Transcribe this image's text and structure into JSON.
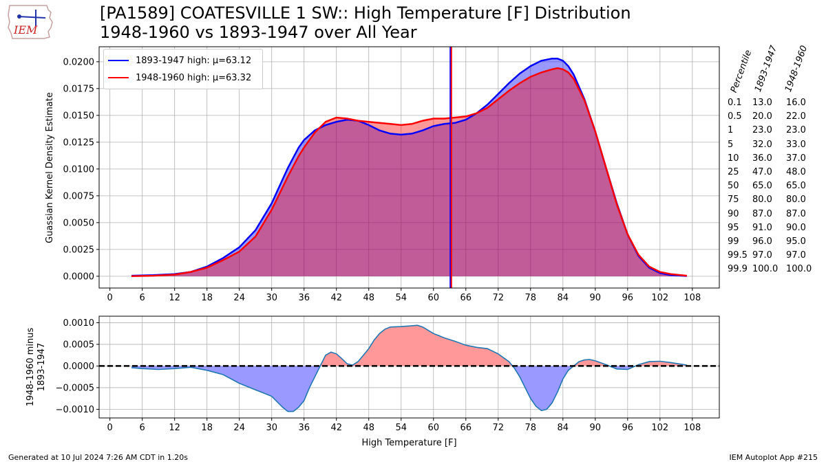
{
  "header": {
    "title_line1": "[PA1589] COATESVILLE 1 SW:: High Temperature [F] Distribution",
    "title_line2": "1948-1960 vs 1893-1947 over All Year",
    "logo_text": "IEM"
  },
  "footer": {
    "generated": "Generated at 10 Jul 2024 7:26 AM CDT in 1.20s",
    "app": "IEM Autoplot App #215"
  },
  "colors": {
    "series1": "#0000ff",
    "series2": "#ff0000",
    "fill_overlap": "#c0569a",
    "diff_pos": "#ff9999",
    "diff_neg": "#9999ff",
    "diff_line": "#1f77b4",
    "grid": "#b0b0b0"
  },
  "percentile_table": {
    "headers": [
      "Percentile",
      "1893-1947",
      "1948-1960"
    ],
    "rows": [
      [
        "0.1",
        "13.0",
        "16.0"
      ],
      [
        "0.5",
        "20.0",
        "22.0"
      ],
      [
        "1",
        "23.0",
        "23.0"
      ],
      [
        "5",
        "32.0",
        "33.0"
      ],
      [
        "10",
        "36.0",
        "37.0"
      ],
      [
        "25",
        "47.0",
        "48.0"
      ],
      [
        "50",
        "65.0",
        "65.0"
      ],
      [
        "75",
        "80.0",
        "80.0"
      ],
      [
        "90",
        "87.0",
        "87.0"
      ],
      [
        "95",
        "91.0",
        "90.0"
      ],
      [
        "99",
        "96.0",
        "95.0"
      ],
      [
        "99.5",
        "97.0",
        "97.0"
      ],
      [
        "99.9",
        "100.0",
        "100.0"
      ]
    ]
  },
  "chart_data": [
    {
      "type": "area",
      "ylabel": "Guassian Kernel Density Estimate",
      "xlim": [
        -2,
        113
      ],
      "ylim": [
        -0.0011,
        0.0214
      ],
      "xticks": [
        0,
        6,
        12,
        18,
        24,
        30,
        36,
        42,
        48,
        54,
        60,
        66,
        72,
        78,
        84,
        90,
        96,
        102,
        108
      ],
      "yticks": [
        0.0,
        0.0025,
        0.005,
        0.0075,
        0.01,
        0.0125,
        0.015,
        0.0175,
        0.02
      ],
      "ytick_labels": [
        "0.0000",
        "0.0025",
        "0.0050",
        "0.0075",
        "0.0100",
        "0.0125",
        "0.0150",
        "0.0175",
        "0.0200"
      ],
      "grid": true,
      "legend_position": "top-left",
      "legend": [
        "1893-1947 high: μ=63.12",
        "1948-1960 high: μ=63.32"
      ],
      "x": [
        4,
        8,
        12,
        15,
        18,
        21,
        24,
        27,
        30,
        33,
        35,
        36,
        38,
        40,
        42,
        44,
        46,
        48,
        50,
        52,
        54,
        56,
        58,
        60,
        62,
        64,
        66,
        68,
        70,
        72,
        74,
        76,
        78,
        80,
        82,
        83,
        84,
        85,
        86,
        88,
        90,
        92,
        94,
        96,
        98,
        100,
        102,
        104,
        107
      ],
      "series": [
        {
          "name": "1893-1947",
          "mean": 63.12,
          "values": [
            5e-05,
            0.0001,
            0.0002,
            0.0004,
            0.0009,
            0.0017,
            0.0027,
            0.0043,
            0.0068,
            0.0101,
            0.012,
            0.0127,
            0.0136,
            0.0141,
            0.0144,
            0.0146,
            0.0145,
            0.0141,
            0.0136,
            0.0133,
            0.0132,
            0.0133,
            0.0136,
            0.014,
            0.0142,
            0.0143,
            0.0146,
            0.0152,
            0.016,
            0.017,
            0.018,
            0.0189,
            0.0196,
            0.0201,
            0.0203,
            0.0203,
            0.0201,
            0.0196,
            0.0188,
            0.0165,
            0.0135,
            0.0101,
            0.0068,
            0.0039,
            0.0019,
            0.0008,
            0.0003,
            0.0001,
            2e-05
          ]
        },
        {
          "name": "1948-1960",
          "mean": 63.32,
          "values": [
            0.0,
            5e-05,
            0.00015,
            0.0004,
            0.0008,
            0.0015,
            0.0023,
            0.0037,
            0.0062,
            0.0093,
            0.0112,
            0.012,
            0.0134,
            0.0144,
            0.0148,
            0.0147,
            0.0145,
            0.0144,
            0.0143,
            0.0142,
            0.0141,
            0.0142,
            0.0145,
            0.0147,
            0.0147,
            0.0148,
            0.0149,
            0.0152,
            0.0157,
            0.0165,
            0.0173,
            0.018,
            0.0186,
            0.019,
            0.0193,
            0.0194,
            0.0193,
            0.019,
            0.0184,
            0.0164,
            0.0135,
            0.0101,
            0.0067,
            0.0039,
            0.002,
            0.0009,
            0.0004,
            0.0002,
            5e-05
          ]
        }
      ]
    },
    {
      "type": "area",
      "xlabel": "High Temperature [F]",
      "ylabel_lines": [
        "1948-1960 minus",
        "1893-1947"
      ],
      "xlim": [
        -2,
        113
      ],
      "ylim": [
        -0.0012,
        0.00115
      ],
      "xticks": [
        0,
        6,
        12,
        18,
        24,
        30,
        36,
        42,
        48,
        54,
        60,
        66,
        72,
        78,
        84,
        90,
        96,
        102,
        108
      ],
      "yticks": [
        -0.001,
        -0.0005,
        0.0,
        0.0005,
        0.001
      ],
      "ytick_labels": [
        "−0.0010",
        "−0.0005",
        "0.0000",
        "0.0005",
        "0.0010"
      ],
      "grid": true,
      "x": [
        4,
        6,
        9,
        12,
        15,
        18,
        21,
        24,
        27,
        30,
        32,
        33,
        34,
        35,
        36,
        37,
        38,
        39,
        40,
        41,
        42,
        43,
        44,
        45,
        46,
        47,
        48,
        49,
        50,
        51,
        52,
        54,
        56,
        57,
        58,
        60,
        62,
        64,
        66,
        68,
        70,
        72,
        74,
        75,
        76,
        77,
        78,
        79,
        80,
        81,
        82,
        83,
        84,
        85,
        86,
        87,
        88,
        89,
        90,
        92,
        94,
        96,
        98,
        100,
        102,
        104,
        107
      ],
      "values": [
        -4e-05,
        -6e-05,
        -8e-05,
        -6e-05,
        -3e-05,
        -0.0001,
        -0.0002,
        -0.0004,
        -0.00055,
        -0.0007,
        -0.00095,
        -0.00105,
        -0.00105,
        -0.00095,
        -0.0008,
        -0.0005,
        -0.00025,
        0.0,
        0.00025,
        0.00032,
        0.00028,
        0.00017,
        5e-05,
        2e-05,
        0.0001,
        0.00025,
        0.0004,
        0.0006,
        0.00075,
        0.00085,
        0.0009,
        0.00091,
        0.00093,
        0.00094,
        0.0009,
        0.00075,
        0.00065,
        0.00057,
        0.00048,
        0.00043,
        0.0004,
        0.00028,
        0.0001,
        -5e-05,
        -0.00025,
        -0.0005,
        -0.00075,
        -0.00093,
        -0.00103,
        -0.001,
        -0.00085,
        -0.0006,
        -0.0003,
        -0.0001,
        0.0,
        0.0001,
        0.00014,
        0.00015,
        0.00012,
        3e-05,
        -7e-05,
        -8e-05,
        3e-05,
        0.0001,
        0.00011,
        8e-05,
        2e-05
      ]
    }
  ]
}
